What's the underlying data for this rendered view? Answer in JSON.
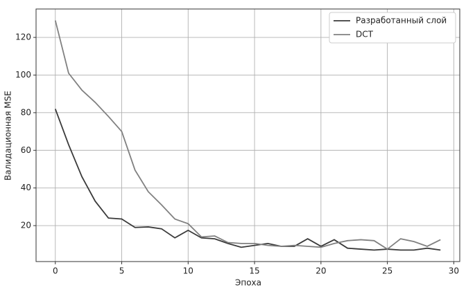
{
  "chart_data": {
    "type": "line",
    "xlabel": "Эпоха",
    "ylabel": "Валидационная MSE",
    "x": [
      0,
      1,
      2,
      3,
      4,
      5,
      6,
      7,
      8,
      9,
      10,
      11,
      12,
      13,
      14,
      15,
      16,
      17,
      18,
      19,
      20,
      21,
      22,
      23,
      24,
      25,
      26,
      27,
      28,
      29
    ],
    "series": [
      {
        "name": "Разработанный слой",
        "color": "#3a3a3a",
        "values": [
          82,
          63,
          46,
          33,
          24,
          23.5,
          19,
          19.3,
          18.3,
          13.5,
          17.5,
          13.5,
          13,
          10.5,
          8.5,
          9.5,
          10.5,
          9,
          9,
          13,
          9,
          12.5,
          8,
          7.5,
          7,
          7.5,
          7,
          7,
          8,
          7
        ]
      },
      {
        "name": "DCT",
        "color": "#808080",
        "values": [
          129,
          101,
          92,
          85.5,
          78,
          70,
          49.5,
          38,
          31,
          23.5,
          21,
          14,
          14.5,
          11,
          10.5,
          10.5,
          9.5,
          9,
          9.5,
          9,
          8.5,
          10.5,
          12,
          12.5,
          12,
          7.5,
          13,
          11.5,
          9,
          12.5
        ]
      }
    ],
    "xlim": [
      -1.45,
      30.45
    ],
    "xticks": [
      0,
      5,
      10,
      15,
      20,
      25,
      30
    ],
    "ylim": [
      0.9,
      135.1
    ],
    "yticks": [
      20,
      40,
      60,
      80,
      100,
      120
    ],
    "grid": true,
    "legend": "upper right"
  }
}
